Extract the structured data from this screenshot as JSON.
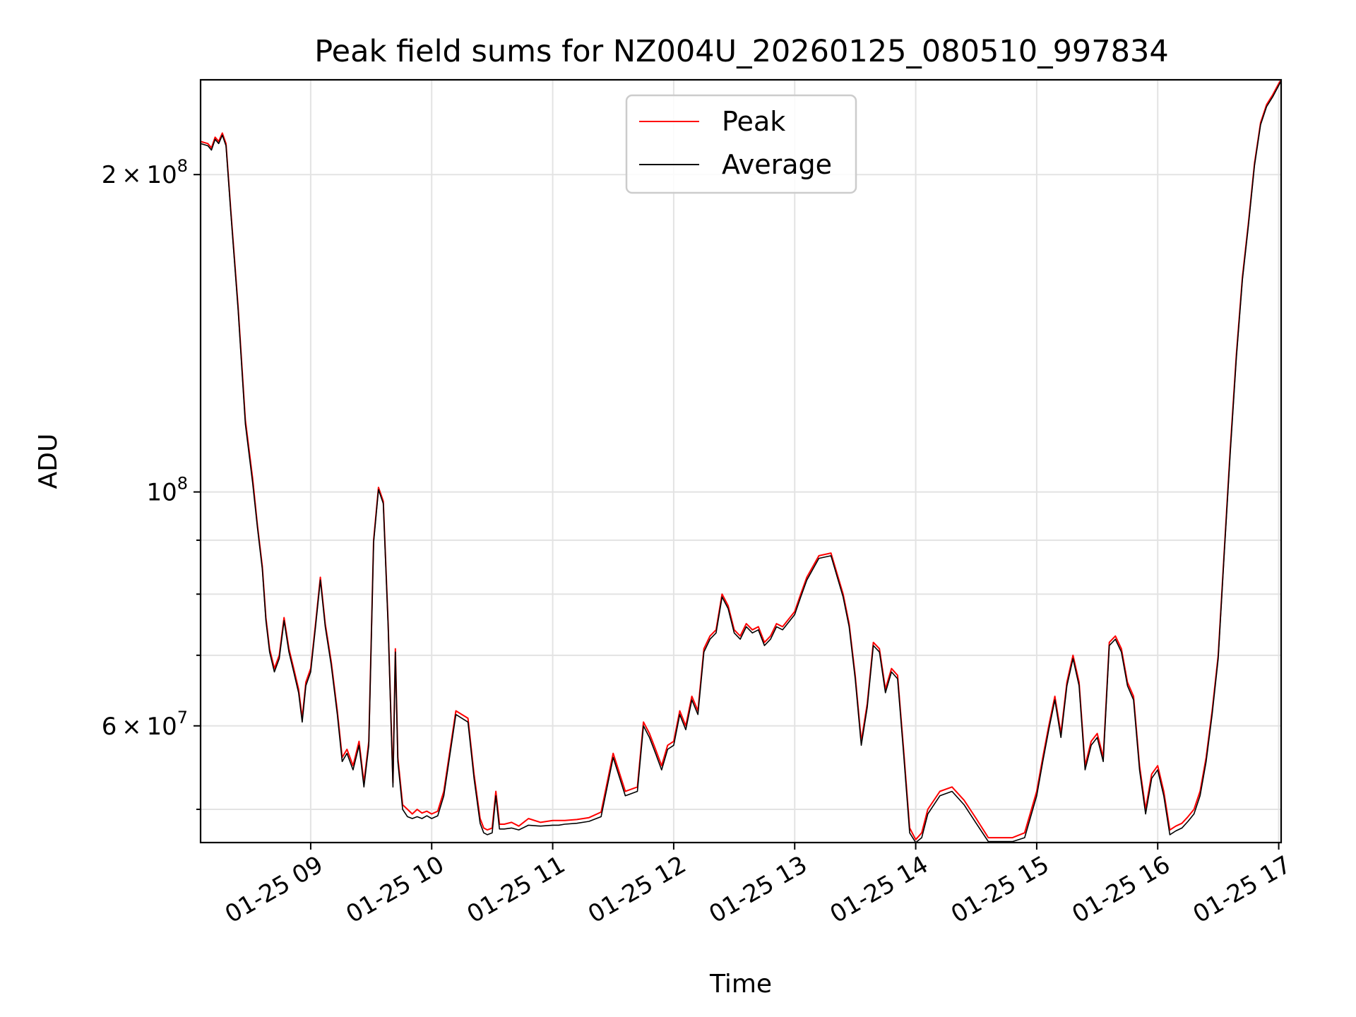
{
  "chart_data": {
    "type": "line",
    "title": "Peak field sums for NZ004U_20260125_080510_997834",
    "xlabel": "Time",
    "ylabel": "ADU",
    "y_scale": "log",
    "x_unit": "hour of 2026-01-25",
    "xlim": [
      8.09,
      17.02
    ],
    "ylim": [
      46500000,
      246000000
    ],
    "x_ticks": [
      {
        "value": 9,
        "label": "01-25 09"
      },
      {
        "value": 10,
        "label": "01-25 10"
      },
      {
        "value": 11,
        "label": "01-25 11"
      },
      {
        "value": 12,
        "label": "01-25 12"
      },
      {
        "value": 13,
        "label": "01-25 13"
      },
      {
        "value": 14,
        "label": "01-25 14"
      },
      {
        "value": 15,
        "label": "01-25 15"
      },
      {
        "value": 16,
        "label": "01-25 16"
      },
      {
        "value": 17,
        "label": "01-25 17"
      }
    ],
    "y_major_ticks": [
      {
        "value": 60000000,
        "mantissa": "6",
        "exponent": "7"
      },
      {
        "value": 100000000,
        "mantissa": "",
        "exponent": "8"
      },
      {
        "value": 200000000,
        "mantissa": "2",
        "exponent": "8"
      }
    ],
    "y_minor_ticks": [
      50000000,
      70000000,
      80000000,
      90000000
    ],
    "grid": true,
    "legend_position": "top-center",
    "series": [
      {
        "name": "Peak",
        "color": "#ff0000",
        "x": [
          8.09,
          8.15,
          8.18,
          8.21,
          8.24,
          8.27,
          8.3,
          8.34,
          8.4,
          8.46,
          8.52,
          8.56,
          8.6,
          8.63,
          8.66,
          8.7,
          8.74,
          8.78,
          8.82,
          8.86,
          8.9,
          8.93,
          8.96,
          9.0,
          9.04,
          9.08,
          9.12,
          9.17,
          9.22,
          9.26,
          9.3,
          9.35,
          9.4,
          9.44,
          9.48,
          9.52,
          9.56,
          9.6,
          9.64,
          9.68,
          9.7,
          9.72,
          9.76,
          9.8,
          9.84,
          9.88,
          9.92,
          9.96,
          10.0,
          10.05,
          10.1,
          10.2,
          10.3,
          10.35,
          10.4,
          10.43,
          10.46,
          10.5,
          10.53,
          10.56,
          10.6,
          10.66,
          10.72,
          10.8,
          10.9,
          11.0,
          11.05,
          11.1,
          11.2,
          11.3,
          11.4,
          11.5,
          11.6,
          11.7,
          11.75,
          11.8,
          11.85,
          11.9,
          11.95,
          12.0,
          12.05,
          12.1,
          12.15,
          12.2,
          12.25,
          12.3,
          12.35,
          12.4,
          12.45,
          12.5,
          12.55,
          12.6,
          12.65,
          12.7,
          12.75,
          12.8,
          12.85,
          12.9,
          13.0,
          13.05,
          13.1,
          13.2,
          13.3,
          13.4,
          13.45,
          13.5,
          13.55,
          13.6,
          13.65,
          13.7,
          13.75,
          13.8,
          13.85,
          13.9,
          13.95,
          14.0,
          14.05,
          14.1,
          14.2,
          14.3,
          14.4,
          14.5,
          14.6,
          14.7,
          14.8,
          14.9,
          15.0,
          15.05,
          15.1,
          15.15,
          15.2,
          15.25,
          15.3,
          15.35,
          15.4,
          15.45,
          15.5,
          15.55,
          15.6,
          15.65,
          15.7,
          15.75,
          15.8,
          15.85,
          15.9,
          15.95,
          16.0,
          16.05,
          16.1,
          16.15,
          16.2,
          16.25,
          16.3,
          16.35,
          16.4,
          16.45,
          16.5,
          16.55,
          16.6,
          16.65,
          16.7,
          16.75,
          16.8,
          16.85,
          16.9,
          16.95,
          17.0,
          17.02
        ],
        "y": [
          215000000,
          214000000,
          212000000,
          217000000,
          215000000,
          219000000,
          214000000,
          185000000,
          150000000,
          117000000,
          103000000,
          93000000,
          85000000,
          76000000,
          71000000,
          68000000,
          70000000,
          76000000,
          71000000,
          68000000,
          65000000,
          61000000,
          66000000,
          68000000,
          75000000,
          83000000,
          75000000,
          69000000,
          62000000,
          56000000,
          57000000,
          55000000,
          58000000,
          53000000,
          58000000,
          90000000,
          101000000,
          98000000,
          75000000,
          53000000,
          71000000,
          56000000,
          50500000,
          50000000,
          49500000,
          50000000,
          49600000,
          49800000,
          49500000,
          49800000,
          52000000,
          62000000,
          61000000,
          54000000,
          49000000,
          48000000,
          47800000,
          48000000,
          52000000,
          48400000,
          48400000,
          48600000,
          48200000,
          49000000,
          48600000,
          48800000,
          48800000,
          48800000,
          48900000,
          49100000,
          49700000,
          56500000,
          52000000,
          52500000,
          60500000,
          59000000,
          57000000,
          55000000,
          57500000,
          58000000,
          62000000,
          60000000,
          64000000,
          62000000,
          71000000,
          73000000,
          74000000,
          80000000,
          78000000,
          74000000,
          73000000,
          75000000,
          74000000,
          74500000,
          72000000,
          73000000,
          75000000,
          74500000,
          77000000,
          80000000,
          83000000,
          87000000,
          87500000,
          80000000,
          75000000,
          67000000,
          58000000,
          63000000,
          72000000,
          71000000,
          65000000,
          68000000,
          67000000,
          57000000,
          48000000,
          46800000,
          47500000,
          50000000,
          52000000,
          52500000,
          51000000,
          49000000,
          47000000,
          47000000,
          47000000,
          47500000,
          52000000,
          56000000,
          60000000,
          64000000,
          59000000,
          66000000,
          70000000,
          66000000,
          55000000,
          58000000,
          59000000,
          56000000,
          72000000,
          73000000,
          71000000,
          66000000,
          64000000,
          55000000,
          50000000,
          54000000,
          55000000,
          52000000,
          47800000,
          48200000,
          48500000,
          49200000,
          50000000,
          52000000,
          56000000,
          62000000,
          70000000,
          88000000,
          110000000,
          135000000,
          160000000,
          180000000,
          205000000,
          224000000,
          233000000,
          238000000,
          244000000,
          246000000
        ]
      },
      {
        "name": "Average",
        "color": "#000000",
        "x": [
          8.09,
          8.15,
          8.18,
          8.21,
          8.24,
          8.27,
          8.3,
          8.34,
          8.4,
          8.46,
          8.52,
          8.56,
          8.6,
          8.63,
          8.66,
          8.7,
          8.74,
          8.78,
          8.82,
          8.86,
          8.9,
          8.93,
          8.96,
          9.0,
          9.04,
          9.08,
          9.12,
          9.17,
          9.22,
          9.26,
          9.3,
          9.35,
          9.4,
          9.44,
          9.48,
          9.52,
          9.56,
          9.6,
          9.64,
          9.68,
          9.7,
          9.72,
          9.76,
          9.8,
          9.84,
          9.88,
          9.92,
          9.96,
          10.0,
          10.05,
          10.1,
          10.2,
          10.3,
          10.35,
          10.4,
          10.43,
          10.46,
          10.5,
          10.53,
          10.56,
          10.6,
          10.66,
          10.72,
          10.8,
          10.9,
          11.0,
          11.05,
          11.1,
          11.2,
          11.3,
          11.4,
          11.5,
          11.6,
          11.7,
          11.75,
          11.8,
          11.85,
          11.9,
          11.95,
          12.0,
          12.05,
          12.1,
          12.15,
          12.2,
          12.25,
          12.3,
          12.35,
          12.4,
          12.45,
          12.5,
          12.55,
          12.6,
          12.65,
          12.7,
          12.75,
          12.8,
          12.85,
          12.9,
          13.0,
          13.05,
          13.1,
          13.2,
          13.3,
          13.4,
          13.45,
          13.5,
          13.55,
          13.6,
          13.65,
          13.7,
          13.75,
          13.8,
          13.85,
          13.9,
          13.95,
          14.0,
          14.05,
          14.1,
          14.2,
          14.3,
          14.4,
          14.5,
          14.6,
          14.7,
          14.8,
          14.9,
          15.0,
          15.05,
          15.1,
          15.15,
          15.2,
          15.25,
          15.3,
          15.35,
          15.4,
          15.45,
          15.5,
          15.55,
          15.6,
          15.65,
          15.7,
          15.75,
          15.8,
          15.85,
          15.9,
          15.95,
          16.0,
          16.05,
          16.1,
          16.15,
          16.2,
          16.25,
          16.3,
          16.35,
          16.4,
          16.45,
          16.5,
          16.55,
          16.6,
          16.65,
          16.7,
          16.75,
          16.8,
          16.85,
          16.9,
          16.95,
          17.0,
          17.02
        ],
        "y": [
          214000000,
          213000000,
          211000000,
          216000000,
          214000000,
          218000000,
          213000000,
          184000000,
          149000000,
          116000000,
          102000000,
          92500000,
          84500000,
          75500000,
          70500000,
          67500000,
          69500000,
          75500000,
          70500000,
          67500000,
          64500000,
          60500000,
          65500000,
          67500000,
          74500000,
          82500000,
          74500000,
          68500000,
          61500000,
          55500000,
          56500000,
          54500000,
          57500000,
          52500000,
          57500000,
          89500000,
          100500000,
          97500000,
          74500000,
          52500000,
          70500000,
          55500000,
          50000000,
          49200000,
          49000000,
          49200000,
          49000000,
          49300000,
          49000000,
          49300000,
          51500000,
          61500000,
          60500000,
          53500000,
          48500000,
          47500000,
          47300000,
          47500000,
          51500000,
          47900000,
          47900000,
          48000000,
          47800000,
          48300000,
          48200000,
          48300000,
          48300000,
          48400000,
          48500000,
          48700000,
          49200000,
          56000000,
          51500000,
          52000000,
          60000000,
          58500000,
          56500000,
          54500000,
          57000000,
          57500000,
          61500000,
          59500000,
          63500000,
          61500000,
          70500000,
          72500000,
          73500000,
          79500000,
          77500000,
          73500000,
          72500000,
          74500000,
          73500000,
          74000000,
          71500000,
          72500000,
          74500000,
          74000000,
          76500000,
          79500000,
          82500000,
          86500000,
          87000000,
          79500000,
          74500000,
          66500000,
          57500000,
          62500000,
          71500000,
          70500000,
          64500000,
          67500000,
          66500000,
          56500000,
          47500000,
          46500000,
          47000000,
          49500000,
          51500000,
          52000000,
          50500000,
          48500000,
          46600000,
          46600000,
          46600000,
          47000000,
          51500000,
          55500000,
          59500000,
          63500000,
          58500000,
          65500000,
          69500000,
          65500000,
          54500000,
          57500000,
          58500000,
          55500000,
          71500000,
          72500000,
          70500000,
          65500000,
          63500000,
          54500000,
          49500000,
          53500000,
          54500000,
          51500000,
          47300000,
          47700000,
          48000000,
          48700000,
          49500000,
          51500000,
          55500000,
          61500000,
          69500000,
          87500000,
          109000000,
          134000000,
          159000000,
          179000000,
          204000000,
          223000000,
          232000000,
          237000000,
          243000000,
          245500000
        ]
      }
    ]
  }
}
